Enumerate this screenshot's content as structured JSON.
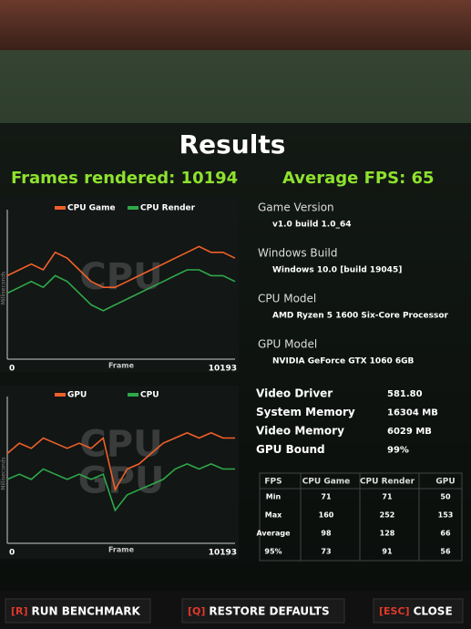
{
  "header": {
    "title": "Results",
    "frames_rendered": "Frames rendered: 10194",
    "average_fps": "Average FPS: 65"
  },
  "charts": [
    {
      "type": "line",
      "watermark": [
        "CPU"
      ],
      "y_label": "Milliseconds",
      "x_label": "Frame",
      "xticks": [
        0,
        10193
      ],
      "series": [
        {
          "name": "CPU Game",
          "color": "#f0602a",
          "values": [
            14,
            15,
            16,
            15,
            18,
            17,
            15,
            13,
            12,
            12,
            13,
            14,
            15,
            16,
            17,
            18,
            19,
            18,
            18,
            17
          ]
        },
        {
          "name": "CPU Render",
          "color": "#2fa84a",
          "values": [
            11,
            12,
            13,
            12,
            14,
            13,
            11,
            9,
            8,
            9,
            10,
            11,
            12,
            13,
            14,
            15,
            15,
            14,
            14,
            13
          ]
        }
      ]
    },
    {
      "type": "line",
      "watermark": [
        "CPU",
        "GPU"
      ],
      "y_label": "Milliseconds",
      "x_label": "Frame",
      "xticks": [
        0,
        10193
      ],
      "series": [
        {
          "name": "GPU",
          "color": "#f0602a",
          "values": [
            17,
            19,
            18,
            20,
            19,
            18,
            19,
            18,
            20,
            10,
            14,
            15,
            17,
            19,
            20,
            21,
            20,
            21,
            20,
            20
          ]
        },
        {
          "name": "CPU",
          "color": "#2fa84a",
          "values": [
            12,
            13,
            12,
            14,
            13,
            12,
            13,
            12,
            13,
            6,
            9,
            10,
            11,
            12,
            14,
            15,
            14,
            15,
            14,
            14
          ]
        }
      ]
    }
  ],
  "system_info": [
    {
      "label": "Game Version",
      "value": "v1.0 build 1.0_64"
    },
    {
      "label": "Windows Build",
      "value": "Windows 10.0 [build 19045]"
    },
    {
      "label": "CPU Model",
      "value": "AMD Ryzen 5 1600 Six-Core Processor"
    },
    {
      "label": "GPU Model",
      "value": "NVIDIA GeForce GTX 1060 6GB"
    }
  ],
  "stats": [
    {
      "label": "Video Driver",
      "value": "581.80"
    },
    {
      "label": "System Memory",
      "value": "16304 MB"
    },
    {
      "label": "Video Memory",
      "value": "6029 MB"
    },
    {
      "label": "GPU Bound",
      "value": "99%"
    }
  ],
  "table": {
    "headers": [
      "FPS",
      "CPU Game",
      "CPU Render",
      "GPU"
    ],
    "rows": [
      [
        "Min",
        "71",
        "71",
        "50"
      ],
      [
        "Max",
        "160",
        "252",
        "153"
      ],
      [
        "Average",
        "98",
        "128",
        "66"
      ],
      [
        "95%",
        "73",
        "91",
        "56"
      ]
    ]
  },
  "buttons": [
    {
      "key": "[R]",
      "label": "RUN BENCHMARK"
    },
    {
      "key": "[Q]",
      "label": "RESTORE DEFAULTS"
    },
    {
      "key": "[ESC]",
      "label": "CLOSE"
    }
  ]
}
